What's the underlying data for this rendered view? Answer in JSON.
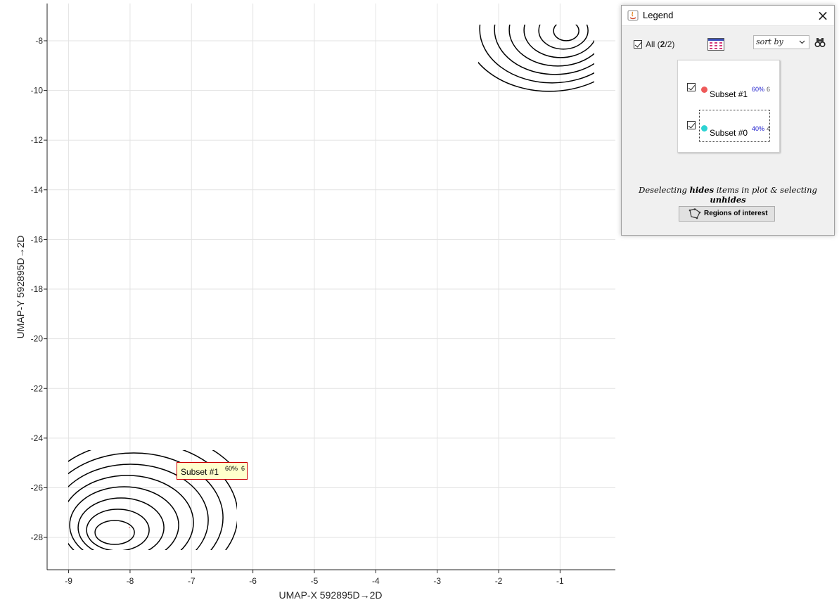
{
  "legend": {
    "title": "Legend",
    "close_label": "×",
    "all_prefix": "All (",
    "all_selected": "2",
    "all_total": "/2)",
    "sort_label": "sort by",
    "subsets": [
      {
        "name": "Subset #1",
        "percent": "60%",
        "count": "6",
        "color": "#ee5a5a",
        "checked": true
      },
      {
        "name": "Subset #0",
        "percent": "40%",
        "count": "4",
        "color": "#2ed3d3",
        "checked": true
      }
    ],
    "hint_parts": [
      "Deselecting ",
      "hides",
      " items in plot & selecting ",
      "unhides"
    ],
    "roi_button_label": "Regions of interest"
  },
  "datatip": {
    "name": "Subset #1",
    "percent": "60%",
    "count": "6"
  },
  "chart_data": {
    "type": "contour",
    "xlabel": "UMAP-X  592895D→2D",
    "ylabel": "UMAP-Y  592895D→2D",
    "xlim": [
      -9.35,
      -0.1
    ],
    "ylim": [
      -29.3,
      -6.5
    ],
    "xticks": [
      -9,
      -8,
      -7,
      -6,
      -5,
      -4,
      -3,
      -2,
      -1
    ],
    "yticks": [
      -8,
      -10,
      -12,
      -14,
      -16,
      -18,
      -20,
      -22,
      -24,
      -26,
      -28
    ],
    "grid": true,
    "clusters": [
      {
        "name": "Subset #1",
        "center": [
          -8.25,
          -27.8
        ],
        "levels": 9
      },
      {
        "name": "Subset #0",
        "center": [
          -0.9,
          -7.6
        ],
        "levels": 7
      }
    ]
  }
}
